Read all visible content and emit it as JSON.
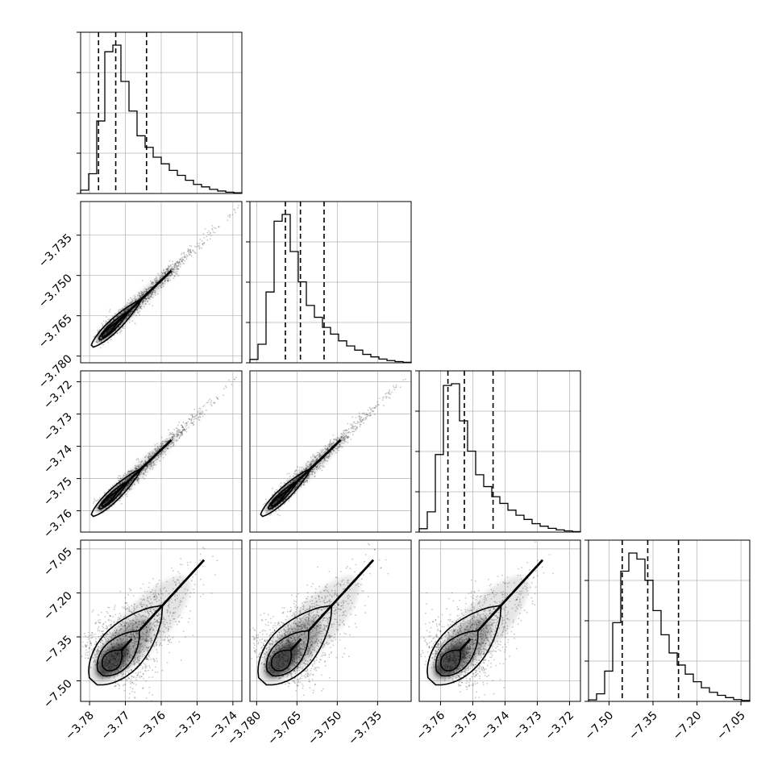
{
  "chart_data": {
    "type": "corner",
    "params": [
      {
        "range": [
          -3.7825,
          -3.7375
        ],
        "ticks": [
          -3.78,
          -3.77,
          -3.76,
          -3.75,
          -3.74
        ],
        "tick_labels": [
          "−3.78",
          "−3.77",
          "−3.76",
          "−3.75",
          "−3.74"
        ],
        "quantiles": [
          -3.7775,
          -3.7727,
          -3.7641
        ],
        "hist": [
          0.02,
          0.12,
          0.44,
          0.86,
          0.9,
          0.68,
          0.5,
          0.35,
          0.28,
          0.22,
          0.18,
          0.14,
          0.11,
          0.08,
          0.055,
          0.04,
          0.025,
          0.015,
          0.008,
          0.004
        ]
      },
      {
        "range": [
          -3.7825,
          -3.7225
        ],
        "ticks": [
          -3.78,
          -3.765,
          -3.75,
          -3.735
        ],
        "tick_labels": [
          "−3.780",
          "−3.765",
          "−3.750",
          "−3.735"
        ],
        "quantiles": [
          -3.7693,
          -3.7637,
          -3.7549
        ],
        "hist": [
          0.02,
          0.11,
          0.42,
          0.84,
          0.88,
          0.66,
          0.48,
          0.34,
          0.27,
          0.21,
          0.17,
          0.13,
          0.1,
          0.075,
          0.05,
          0.035,
          0.022,
          0.013,
          0.007,
          0.003
        ]
      },
      {
        "range": [
          -3.7666,
          -3.7166
        ],
        "ticks": [
          -3.76,
          -3.75,
          -3.74,
          -3.73,
          -3.72
        ],
        "tick_labels": [
          "−3.76",
          "−3.75",
          "−3.74",
          "−3.73",
          "−3.72"
        ],
        "quantiles": [
          -3.7577,
          -3.7526,
          -3.7437
        ],
        "hist": [
          0.02,
          0.12,
          0.46,
          0.87,
          0.88,
          0.66,
          0.48,
          0.34,
          0.27,
          0.21,
          0.17,
          0.13,
          0.1,
          0.075,
          0.05,
          0.035,
          0.022,
          0.013,
          0.007,
          0.003
        ]
      },
      {
        "range": [
          -7.57,
          -7.02
        ],
        "ticks": [
          -7.5,
          -7.35,
          -7.2,
          -7.05
        ],
        "tick_labels": [
          "−7.50",
          "−7.35",
          "−7.20",
          "−7.05"
        ],
        "quantiles": [
          -7.455,
          -7.368,
          -7.263
        ],
        "hist": [
          0.01,
          0.05,
          0.2,
          0.52,
          0.86,
          0.98,
          0.94,
          0.8,
          0.6,
          0.44,
          0.32,
          0.24,
          0.18,
          0.13,
          0.09,
          0.06,
          0.04,
          0.025,
          0.012,
          0.006
        ]
      }
    ],
    "grid": true,
    "legend": "none"
  }
}
